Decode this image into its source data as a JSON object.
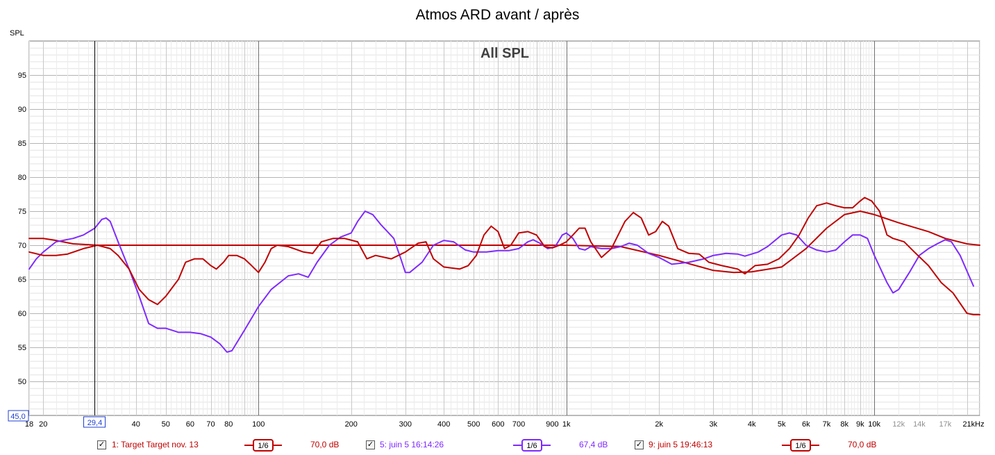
{
  "window": {
    "title": "Atmos ARD avant / après"
  },
  "chart_data": {
    "type": "line",
    "title": "Atmos ARD avant / après",
    "graph_label": "All SPL",
    "ylabel": "SPL",
    "xscale": "log",
    "xlim": [
      18,
      22000
    ],
    "ylim": [
      45,
      100
    ],
    "grid": true,
    "y_ticks": [
      50,
      55,
      60,
      65,
      70,
      75,
      80,
      85,
      90,
      95
    ],
    "x_tick_labels": [
      {
        "v": 18,
        "t": "18"
      },
      {
        "v": 20,
        "t": "20"
      },
      {
        "v": 40,
        "t": "40"
      },
      {
        "v": 50,
        "t": "50"
      },
      {
        "v": 60,
        "t": "60"
      },
      {
        "v": 70,
        "t": "70"
      },
      {
        "v": 80,
        "t": "80"
      },
      {
        "v": 100,
        "t": "100"
      },
      {
        "v": 200,
        "t": "200"
      },
      {
        "v": 300,
        "t": "300"
      },
      {
        "v": 400,
        "t": "400"
      },
      {
        "v": 500,
        "t": "500"
      },
      {
        "v": 600,
        "t": "600"
      },
      {
        "v": 700,
        "t": "700"
      },
      {
        "v": 900,
        "t": "900"
      },
      {
        "v": 1000,
        "t": "1k"
      },
      {
        "v": 2000,
        "t": "2k"
      },
      {
        "v": 3000,
        "t": "3k"
      },
      {
        "v": 4000,
        "t": "4k"
      },
      {
        "v": 5000,
        "t": "5k"
      },
      {
        "v": 6000,
        "t": "6k"
      },
      {
        "v": 7000,
        "t": "7k"
      },
      {
        "v": 8000,
        "t": "8k"
      },
      {
        "v": 9000,
        "t": "9k"
      },
      {
        "v": 10000,
        "t": "10k"
      },
      {
        "v": 12000,
        "t": "12k",
        "muted": true
      },
      {
        "v": 14000,
        "t": "14k",
        "muted": true
      },
      {
        "v": 17000,
        "t": "17k",
        "muted": true
      },
      {
        "v": 21000,
        "t": "21kHz"
      }
    ],
    "cursor": {
      "x_label": "29,4",
      "x": 29.4,
      "y_label": "45,0"
    },
    "series": [
      {
        "name": "1: Target Target nov. 13",
        "color": "#c00000",
        "smoothing": "1/6",
        "level": "70,0 dB",
        "points": [
          [
            18,
            71.0
          ],
          [
            20,
            71.0
          ],
          [
            22,
            70.7
          ],
          [
            25,
            70.2
          ],
          [
            30,
            70.0
          ],
          [
            40,
            70.0
          ],
          [
            100,
            70.0
          ],
          [
            1000,
            70.0
          ],
          [
            1500,
            69.8
          ],
          [
            2000,
            68.5
          ],
          [
            3000,
            66.3
          ],
          [
            3500,
            66.0
          ],
          [
            4000,
            66.1
          ],
          [
            5000,
            66.8
          ],
          [
            6000,
            69.5
          ],
          [
            7000,
            72.5
          ],
          [
            8000,
            74.5
          ],
          [
            9000,
            75.0
          ],
          [
            10000,
            74.5
          ],
          [
            12000,
            73.3
          ],
          [
            15000,
            72.0
          ],
          [
            17000,
            71.0
          ],
          [
            20000,
            70.2
          ],
          [
            22000,
            70.0
          ]
        ]
      },
      {
        "name": "5: juin 5 16:14:26",
        "color": "#7f2aff",
        "smoothing": "1/6",
        "level": "67,4 dB",
        "points": [
          [
            18,
            66.5
          ],
          [
            19,
            68.0
          ],
          [
            20,
            69.0
          ],
          [
            22,
            70.5
          ],
          [
            25,
            71.0
          ],
          [
            27,
            71.5
          ],
          [
            29.4,
            72.5
          ],
          [
            31,
            73.8
          ],
          [
            32,
            74.0
          ],
          [
            33,
            73.5
          ],
          [
            35,
            70.5
          ],
          [
            38,
            66.5
          ],
          [
            41,
            62.5
          ],
          [
            44,
            58.5
          ],
          [
            47,
            57.8
          ],
          [
            50,
            57.8
          ],
          [
            55,
            57.2
          ],
          [
            60,
            57.2
          ],
          [
            65,
            57.0
          ],
          [
            70,
            56.5
          ],
          [
            75,
            55.5
          ],
          [
            79,
            54.3
          ],
          [
            82,
            54.5
          ],
          [
            90,
            57.5
          ],
          [
            100,
            61.0
          ],
          [
            110,
            63.5
          ],
          [
            125,
            65.5
          ],
          [
            135,
            65.8
          ],
          [
            145,
            65.3
          ],
          [
            155,
            67.5
          ],
          [
            170,
            70.0
          ],
          [
            185,
            71.2
          ],
          [
            200,
            71.8
          ],
          [
            210,
            73.5
          ],
          [
            222,
            75.0
          ],
          [
            235,
            74.5
          ],
          [
            250,
            73.0
          ],
          [
            275,
            71.0
          ],
          [
            290,
            68.0
          ],
          [
            300,
            66.0
          ],
          [
            310,
            66.0
          ],
          [
            340,
            67.5
          ],
          [
            370,
            70.0
          ],
          [
            400,
            70.7
          ],
          [
            430,
            70.5
          ],
          [
            470,
            69.3
          ],
          [
            500,
            69.0
          ],
          [
            550,
            69.0
          ],
          [
            600,
            69.2
          ],
          [
            650,
            69.2
          ],
          [
            700,
            69.5
          ],
          [
            750,
            70.5
          ],
          [
            780,
            70.8
          ],
          [
            820,
            70.3
          ],
          [
            870,
            69.5
          ],
          [
            920,
            69.8
          ],
          [
            970,
            71.5
          ],
          [
            1000,
            71.8
          ],
          [
            1050,
            71.0
          ],
          [
            1100,
            69.5
          ],
          [
            1150,
            69.3
          ],
          [
            1200,
            69.8
          ],
          [
            1300,
            69.5
          ],
          [
            1400,
            69.5
          ],
          [
            1500,
            69.8
          ],
          [
            1600,
            70.3
          ],
          [
            1700,
            70.0
          ],
          [
            1850,
            68.8
          ],
          [
            2000,
            68.2
          ],
          [
            2200,
            67.2
          ],
          [
            2500,
            67.5
          ],
          [
            2800,
            68.0
          ],
          [
            3000,
            68.5
          ],
          [
            3300,
            68.8
          ],
          [
            3600,
            68.7
          ],
          [
            3800,
            68.4
          ],
          [
            4200,
            69.0
          ],
          [
            4500,
            69.8
          ],
          [
            5000,
            71.5
          ],
          [
            5300,
            71.8
          ],
          [
            5600,
            71.5
          ],
          [
            6000,
            70.0
          ],
          [
            6500,
            69.3
          ],
          [
            7000,
            69.0
          ],
          [
            7500,
            69.3
          ],
          [
            8000,
            70.5
          ],
          [
            8500,
            71.5
          ],
          [
            9000,
            71.5
          ],
          [
            9500,
            71.0
          ],
          [
            10000,
            68.5
          ],
          [
            11000,
            64.5
          ],
          [
            11500,
            63.0
          ],
          [
            12000,
            63.5
          ],
          [
            13000,
            66.0
          ],
          [
            14000,
            68.5
          ],
          [
            15000,
            69.5
          ],
          [
            16000,
            70.2
          ],
          [
            17000,
            70.8
          ],
          [
            17800,
            70.5
          ],
          [
            19000,
            68.5
          ],
          [
            21000,
            64.0
          ]
        ]
      },
      {
        "name": "9: juin 5 19:46:13",
        "color": "#c00000",
        "smoothing": "1/6",
        "level": "70,0 dB",
        "points": [
          [
            18,
            69.0
          ],
          [
            20,
            68.5
          ],
          [
            22,
            68.5
          ],
          [
            24,
            68.7
          ],
          [
            27,
            69.5
          ],
          [
            30,
            70.0
          ],
          [
            33,
            69.5
          ],
          [
            35,
            68.5
          ],
          [
            38,
            66.5
          ],
          [
            41,
            63.5
          ],
          [
            44,
            62.0
          ],
          [
            47,
            61.3
          ],
          [
            50,
            62.5
          ],
          [
            55,
            65.0
          ],
          [
            58,
            67.5
          ],
          [
            62,
            68.0
          ],
          [
            66,
            68.0
          ],
          [
            70,
            67.0
          ],
          [
            73,
            66.5
          ],
          [
            77,
            67.5
          ],
          [
            80,
            68.5
          ],
          [
            85,
            68.5
          ],
          [
            90,
            68.0
          ],
          [
            95,
            67.0
          ],
          [
            100,
            66.0
          ],
          [
            105,
            67.5
          ],
          [
            110,
            69.5
          ],
          [
            115,
            70.0
          ],
          [
            125,
            69.8
          ],
          [
            140,
            69.0
          ],
          [
            150,
            68.8
          ],
          [
            160,
            70.5
          ],
          [
            175,
            71.0
          ],
          [
            190,
            71.0
          ],
          [
            210,
            70.5
          ],
          [
            225,
            68.0
          ],
          [
            240,
            68.5
          ],
          [
            270,
            68.0
          ],
          [
            300,
            69.0
          ],
          [
            330,
            70.3
          ],
          [
            350,
            70.5
          ],
          [
            370,
            68.0
          ],
          [
            400,
            66.8
          ],
          [
            450,
            66.5
          ],
          [
            480,
            67.0
          ],
          [
            510,
            68.5
          ],
          [
            540,
            71.5
          ],
          [
            570,
            72.8
          ],
          [
            600,
            72.0
          ],
          [
            630,
            69.5
          ],
          [
            660,
            70.0
          ],
          [
            700,
            71.8
          ],
          [
            750,
            72.0
          ],
          [
            800,
            71.5
          ],
          [
            850,
            69.8
          ],
          [
            900,
            69.6
          ],
          [
            950,
            70.0
          ],
          [
            1000,
            70.5
          ],
          [
            1050,
            71.5
          ],
          [
            1100,
            72.5
          ],
          [
            1150,
            72.5
          ],
          [
            1200,
            70.5
          ],
          [
            1300,
            68.2
          ],
          [
            1400,
            69.5
          ],
          [
            1550,
            73.5
          ],
          [
            1650,
            74.8
          ],
          [
            1750,
            74.0
          ],
          [
            1850,
            71.5
          ],
          [
            1950,
            72.0
          ],
          [
            2050,
            73.5
          ],
          [
            2150,
            72.8
          ],
          [
            2300,
            69.5
          ],
          [
            2500,
            68.8
          ],
          [
            2700,
            68.7
          ],
          [
            2900,
            67.5
          ],
          [
            3200,
            67.0
          ],
          [
            3600,
            66.5
          ],
          [
            3800,
            65.8
          ],
          [
            4100,
            67.0
          ],
          [
            4500,
            67.2
          ],
          [
            4900,
            68.0
          ],
          [
            5300,
            69.5
          ],
          [
            5700,
            71.5
          ],
          [
            6100,
            74.0
          ],
          [
            6500,
            75.8
          ],
          [
            7000,
            76.2
          ],
          [
            7500,
            75.8
          ],
          [
            8000,
            75.5
          ],
          [
            8500,
            75.5
          ],
          [
            9000,
            76.5
          ],
          [
            9300,
            77.0
          ],
          [
            9800,
            76.5
          ],
          [
            10400,
            75.0
          ],
          [
            11000,
            71.5
          ],
          [
            11500,
            71.0
          ],
          [
            12500,
            70.5
          ],
          [
            13500,
            69.0
          ],
          [
            15000,
            67.0
          ],
          [
            16500,
            64.5
          ],
          [
            18000,
            63.0
          ],
          [
            20000,
            60.0
          ],
          [
            21000,
            59.8
          ],
          [
            22000,
            59.8
          ]
        ]
      }
    ]
  }
}
